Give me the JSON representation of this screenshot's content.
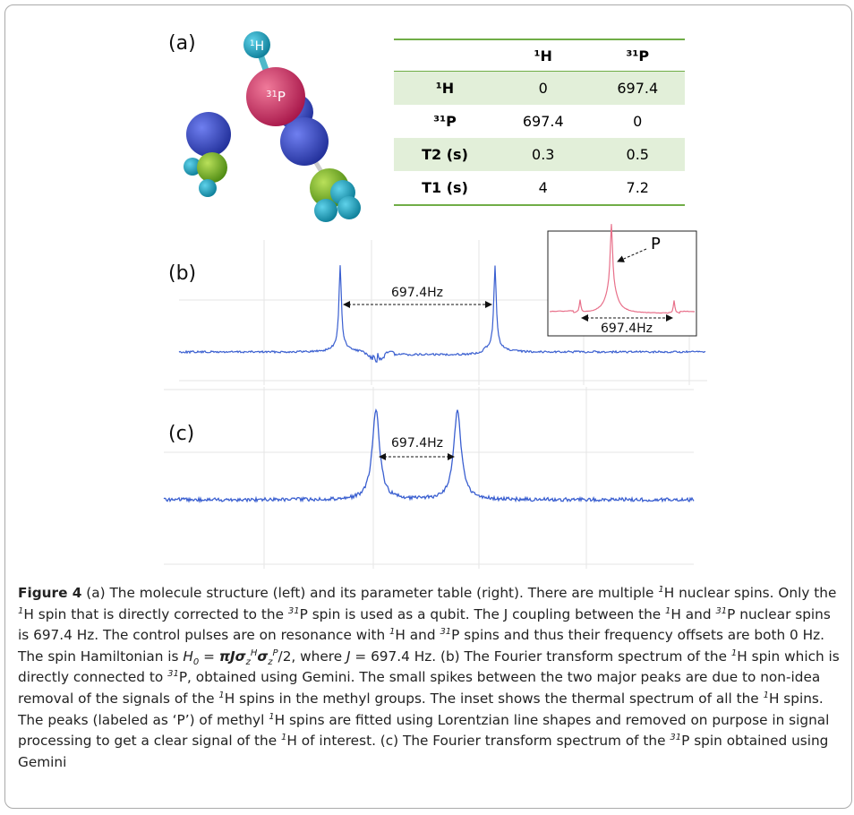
{
  "panels": [
    {
      "label": "(a)"
    },
    {
      "label": "(b)",
      "spacing": "697.4Hz",
      "inset": {
        "peak_label": "P",
        "spacing": "697.4Hz"
      }
    },
    {
      "label": "(c)",
      "spacing": "697.4Hz"
    }
  ],
  "molecule": {
    "atoms": [
      {
        "mass": "1",
        "symbol": "H"
      },
      {
        "mass": "31",
        "symbol": "P"
      }
    ]
  },
  "table": {
    "columns": [
      "¹H",
      "³¹P"
    ],
    "rows": [
      {
        "label": "¹H",
        "values": [
          0,
          697.4
        ]
      },
      {
        "label": "³¹P",
        "values": [
          697.4,
          0
        ]
      },
      {
        "label": "T2 (s)",
        "values": [
          0.3,
          0.5
        ]
      },
      {
        "label": "T1 (s)",
        "values": [
          4,
          7.2
        ]
      }
    ]
  },
  "caption": {
    "runs": [
      {
        "text": "Figure 4",
        "style": "b"
      },
      {
        "text": "  (a) The molecule structure (left) and its parameter table (right). There are multiple "
      },
      {
        "text": "1",
        "style": "sup"
      },
      {
        "text": "H nuclear spins. Only the "
      },
      {
        "text": "1",
        "style": "sup"
      },
      {
        "text": "H spin that is directly corrected to the "
      },
      {
        "text": "31",
        "style": "sup"
      },
      {
        "text": "P spin is used as a qubit. The J coupling between the "
      },
      {
        "text": "1",
        "style": "sup"
      },
      {
        "text": "H and "
      },
      {
        "text": "31",
        "style": "sup"
      },
      {
        "text": "P nuclear spins is 697.4 Hz. The control pulses are on resonance with "
      },
      {
        "text": "1",
        "style": "sup"
      },
      {
        "text": "H and "
      },
      {
        "text": "31",
        "style": "sup"
      },
      {
        "text": "P spins and thus their frequency offsets are both 0 Hz. The spin Hamiltonian is "
      },
      {
        "text": "H",
        "style": "i"
      },
      {
        "text": "0",
        "style": "sub"
      },
      {
        "text": " = "
      },
      {
        "text": "πJσ",
        "style": "bi"
      },
      {
        "text": "z",
        "style": "sub"
      },
      {
        "text": "H",
        "style": "sup"
      },
      {
        "text": "σ",
        "style": "bi"
      },
      {
        "text": "z",
        "style": "sub"
      },
      {
        "text": "P",
        "style": "sup"
      },
      {
        "text": "/2, where "
      },
      {
        "text": "J",
        "style": "i"
      },
      {
        "text": " = 697.4 Hz. (b) The Fourier transform spectrum of the "
      },
      {
        "text": "1",
        "style": "sup"
      },
      {
        "text": "H spin which is directly connected to "
      },
      {
        "text": "31",
        "style": "sup"
      },
      {
        "text": "P, obtained using Gemini. The small spikes between the two major peaks are due to non-idea removal of the signals of the "
      },
      {
        "text": "1",
        "style": "sup"
      },
      {
        "text": "H spins in the methyl groups. The inset shows the thermal spectrum of all the "
      },
      {
        "text": "1",
        "style": "sup"
      },
      {
        "text": "H spins. The peaks (labeled as ‘P’) of methyl "
      },
      {
        "text": "1",
        "style": "sup"
      },
      {
        "text": "H spins are fitted using Lorentzian line shapes and removed on purpose in signal processing to get a clear signal of the "
      },
      {
        "text": "1",
        "style": "sup"
      },
      {
        "text": "H of interest. (c) The Fourier transform spectrum of the "
      },
      {
        "text": "31",
        "style": "sup"
      },
      {
        "text": "P spin obtained using Gemini"
      }
    ]
  }
}
